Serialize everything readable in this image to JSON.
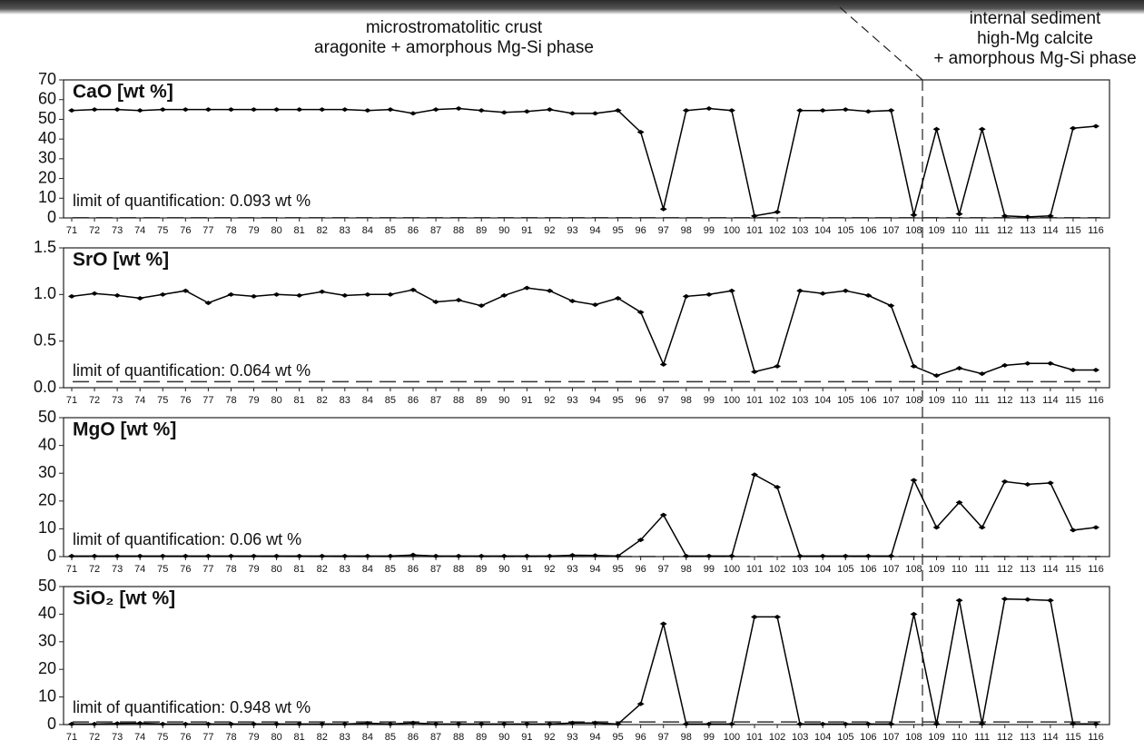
{
  "header": {
    "left": [
      "microstromatolitic crust",
      "aragonite + amorphous Mg-Si phase"
    ],
    "right": [
      "internal sediment",
      "high-Mg calcite",
      "+ amorphous Mg-Si phase"
    ]
  },
  "chart_data": [
    {
      "type": "line",
      "title": "CaO [wt %]",
      "loq": 0.093,
      "loq_label": "limit of quantification: 0.093 wt %",
      "categories": [
        "71",
        "72",
        "73",
        "74",
        "75",
        "76",
        "77",
        "78",
        "79",
        "80",
        "81",
        "82",
        "83",
        "84",
        "85",
        "86",
        "87",
        "88",
        "89",
        "90",
        "91",
        "92",
        "93",
        "94",
        "95",
        "96",
        "97",
        "98",
        "99",
        "100",
        "101",
        "102",
        "103",
        "104",
        "105",
        "106",
        "107",
        "108",
        "109",
        "110",
        "111",
        "112",
        "113",
        "114",
        "115",
        "116"
      ],
      "values": [
        54.5,
        55,
        55,
        54.5,
        55,
        55,
        55,
        55,
        55,
        55,
        55,
        55,
        55,
        54.5,
        55,
        53,
        55,
        55.5,
        54.5,
        53.5,
        54,
        55,
        53,
        53,
        54.5,
        43.5,
        4.5,
        54.5,
        55.5,
        54.5,
        1,
        3,
        54.5,
        54.5,
        55,
        54,
        54.5,
        1.5,
        45,
        2,
        45,
        1,
        0.5,
        1,
        45.5,
        46.5
      ],
      "color": "#000000",
      "ylim": [
        0,
        70
      ],
      "yticks": [
        0,
        10,
        20,
        30,
        40,
        50,
        60,
        70
      ]
    },
    {
      "type": "line",
      "title": "SrO [wt %]",
      "loq": 0.064,
      "loq_label": "limit of quantification: 0.064 wt %",
      "categories": [
        "71",
        "72",
        "73",
        "74",
        "75",
        "76",
        "77",
        "78",
        "79",
        "80",
        "81",
        "82",
        "83",
        "84",
        "85",
        "86",
        "87",
        "88",
        "89",
        "90",
        "91",
        "92",
        "93",
        "94",
        "95",
        "96",
        "97",
        "98",
        "99",
        "100",
        "101",
        "102",
        "103",
        "104",
        "105",
        "106",
        "107",
        "108",
        "109",
        "110",
        "111",
        "112",
        "113",
        "114",
        "115",
        "116"
      ],
      "values": [
        0.98,
        1.01,
        0.99,
        0.96,
        1.0,
        1.04,
        0.91,
        1.0,
        0.98,
        1.0,
        0.99,
        1.03,
        0.99,
        1.0,
        1.0,
        1.05,
        0.92,
        0.94,
        0.88,
        0.99,
        1.07,
        1.04,
        0.93,
        0.89,
        0.96,
        0.81,
        0.25,
        0.98,
        1.0,
        1.04,
        0.17,
        0.23,
        1.04,
        1.01,
        1.04,
        0.99,
        0.88,
        0.23,
        0.13,
        0.21,
        0.15,
        0.24,
        0.26,
        0.26,
        0.19,
        0.19
      ],
      "color": "#000000",
      "ylim": [
        0,
        1.5
      ],
      "yticks": [
        {
          "value": 0,
          "label": "0.0"
        },
        0.5,
        {
          "value": 1,
          "label": "1.0"
        },
        1.5
      ]
    },
    {
      "type": "line",
      "title": "MgO [wt %]",
      "loq": 0.06,
      "loq_label": "limit of quantification: 0.06 wt %",
      "categories": [
        "71",
        "72",
        "73",
        "74",
        "75",
        "76",
        "77",
        "78",
        "79",
        "80",
        "81",
        "82",
        "83",
        "84",
        "85",
        "86",
        "87",
        "88",
        "89",
        "90",
        "91",
        "92",
        "93",
        "94",
        "95",
        "96",
        "97",
        "98",
        "99",
        "100",
        "101",
        "102",
        "103",
        "104",
        "105",
        "106",
        "107",
        "108",
        "109",
        "110",
        "111",
        "112",
        "113",
        "114",
        "115",
        "116"
      ],
      "values": [
        0.2,
        0.2,
        0.2,
        0.2,
        0.2,
        0.2,
        0.2,
        0.2,
        0.2,
        0.2,
        0.2,
        0.2,
        0.2,
        0.2,
        0.2,
        0.6,
        0.2,
        0.2,
        0.2,
        0.2,
        0.2,
        0.2,
        0.5,
        0.4,
        0.2,
        6,
        15,
        0.2,
        0.2,
        0.2,
        29.5,
        25,
        0.2,
        0.2,
        0.2,
        0.2,
        0.2,
        27.5,
        10.5,
        19.5,
        10.5,
        27,
        26,
        26.5,
        9.5,
        10.5
      ],
      "color": "#000000",
      "ylim": [
        0,
        50
      ],
      "yticks": [
        0,
        10,
        20,
        30,
        40,
        50
      ]
    },
    {
      "type": "line",
      "title": "SiO₂ [wt %]",
      "loq": 0.948,
      "loq_label": "limit of quantification: 0.948 wt %",
      "categories": [
        "71",
        "72",
        "73",
        "74",
        "75",
        "76",
        "77",
        "78",
        "79",
        "80",
        "81",
        "82",
        "83",
        "84",
        "85",
        "86",
        "87",
        "88",
        "89",
        "90",
        "91",
        "92",
        "93",
        "94",
        "95",
        "96",
        "97",
        "98",
        "99",
        "100",
        "101",
        "102",
        "103",
        "104",
        "105",
        "106",
        "107",
        "108",
        "109",
        "110",
        "111",
        "112",
        "113",
        "114",
        "115",
        "116"
      ],
      "values": [
        0.2,
        0.2,
        0.4,
        0.5,
        0.2,
        0.2,
        0.2,
        0.2,
        0.2,
        0.2,
        0.2,
        0.2,
        0.2,
        0.5,
        0.2,
        0.6,
        0.2,
        0.2,
        0.2,
        0.2,
        0.2,
        0.2,
        0.6,
        0.6,
        0.2,
        7.5,
        36.5,
        0.2,
        0.2,
        0.2,
        39,
        39,
        0.2,
        0.2,
        0.2,
        0.2,
        0.2,
        40,
        0.2,
        45,
        0.3,
        45.5,
        45.3,
        45,
        0.3,
        0.2
      ],
      "color": "#000000",
      "ylim": [
        0,
        50
      ],
      "yticks": [
        0,
        10,
        20,
        30,
        40,
        50
      ]
    }
  ]
}
